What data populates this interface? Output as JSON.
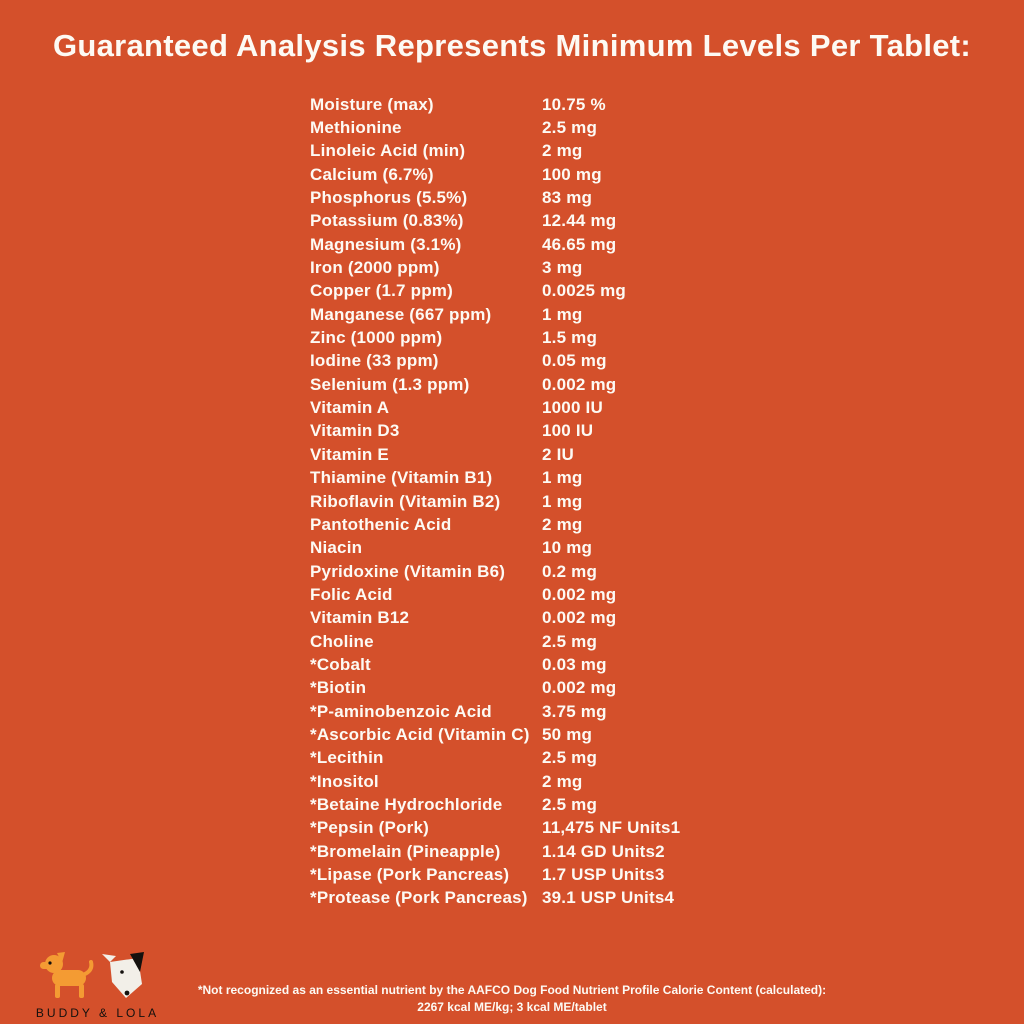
{
  "page": {
    "title": "Guaranteed Analysis Represents Minimum Levels Per Tablet:",
    "background_color": "#D4502B",
    "text_color": "#FDFAF4"
  },
  "table": {
    "rows": [
      {
        "name": "Moisture (max)",
        "value": "10.75 %"
      },
      {
        "name": "Methionine",
        "value": "2.5 mg"
      },
      {
        "name": "Linoleic Acid (min)",
        "value": "2 mg"
      },
      {
        "name": "Calcium (6.7%)",
        "value": "100 mg"
      },
      {
        "name": "Phosphorus (5.5%)",
        "value": "83 mg"
      },
      {
        "name": "Potassium (0.83%)",
        "value": "12.44 mg"
      },
      {
        "name": "Magnesium (3.1%)",
        "value": "46.65 mg"
      },
      {
        "name": "Iron (2000 ppm)",
        "value": "3 mg"
      },
      {
        "name": "Copper (1.7 ppm)",
        "value": "0.0025 mg"
      },
      {
        "name": "Manganese (667 ppm)",
        "value": "1 mg"
      },
      {
        "name": "Zinc (1000 ppm)",
        "value": "1.5 mg"
      },
      {
        "name": "Iodine (33 ppm)",
        "value": "0.05 mg"
      },
      {
        "name": "Selenium (1.3 ppm)",
        "value": "0.002 mg"
      },
      {
        "name": "Vitamin A",
        "value": "1000 IU"
      },
      {
        "name": "Vitamin D3",
        "value": "100 IU"
      },
      {
        "name": "Vitamin E",
        "value": "2 IU"
      },
      {
        "name": "Thiamine (Vitamin B1)",
        "value": "1 mg"
      },
      {
        "name": "Riboflavin (Vitamin B2)",
        "value": "1 mg"
      },
      {
        "name": "Pantothenic Acid",
        "value": "2 mg"
      },
      {
        "name": "Niacin",
        "value": "10 mg"
      },
      {
        "name": "Pyridoxine (Vitamin B6)",
        "value": "0.2 mg"
      },
      {
        "name": "Folic Acid",
        "value": "0.002 mg"
      },
      {
        "name": "Vitamin B12",
        "value": "0.002 mg"
      },
      {
        "name": "Choline",
        "value": "2.5 mg"
      },
      {
        "name": "*Cobalt",
        "value": "0.03 mg"
      },
      {
        "name": "*Biotin",
        "value": "0.002 mg"
      },
      {
        "name": "*P-aminobenzoic Acid",
        "value": "3.75 mg"
      },
      {
        "name": "*Ascorbic Acid (Vitamin C)",
        "value": "50 mg"
      },
      {
        "name": "*Lecithin",
        "value": "2.5 mg"
      },
      {
        "name": "*Inositol",
        "value": "2 mg"
      },
      {
        "name": "*Betaine Hydrochloride",
        "value": "2.5 mg"
      },
      {
        "name": "*Pepsin (Pork)",
        "value": "11,475 NF Units1"
      },
      {
        "name": "*Bromelain (Pineapple)",
        "value": "1.14 GD Units2"
      },
      {
        "name": "*Lipase (Pork Pancreas)",
        "value": "1.7 USP Units3"
      },
      {
        "name": "*Protease (Pork Pancreas)",
        "value": "39.1 USP Units4"
      }
    ]
  },
  "footer": {
    "brand": "BUDDY & LOLA",
    "note_line1": "*Not recognized as an essential nutrient by the AAFCO Dog Food Nutrient Profile Calorie Content (calculated):",
    "note_line2": "2267 kcal ME/kg; 3 kcal ME/tablet",
    "logo_colors": {
      "orange_dog": "#F49B33",
      "white_dog": "#F2EFE8",
      "accent": "#14110E"
    }
  }
}
